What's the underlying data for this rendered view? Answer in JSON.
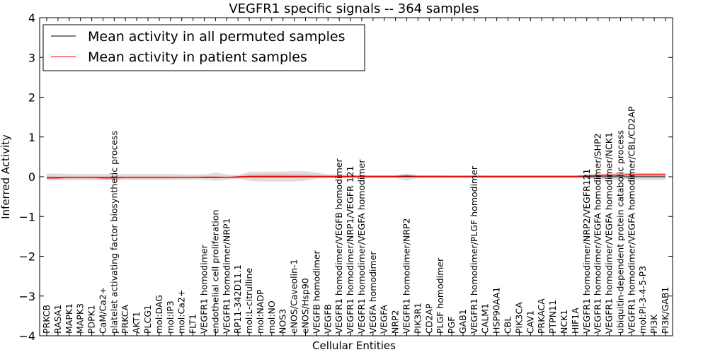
{
  "chart_data": {
    "type": "line",
    "title": "VEGFR1 specific signals -- 364 samples",
    "xlabel": "Cellular Entities",
    "ylabel": "Inferred Activity",
    "ylim": [
      -4,
      4
    ],
    "yticks": [
      "−4",
      "−3",
      "−2",
      "−1",
      "0",
      "1",
      "2",
      "3",
      "4"
    ],
    "grid": false,
    "legend_position": "top-left",
    "categories": [
      "PRKCB",
      "RASA1",
      "MAPK1",
      "MAPK3",
      "PDPK1",
      "CaM/Ca2+",
      "platelet activating factor biosynthetic process",
      "PRKCA",
      "AKT1",
      "PLCG1",
      "mol:DAG",
      "mol:IP3",
      "mol:Ca2+",
      "FLT1",
      "VEGFR1 homodimer",
      "endothelial cell proliferation",
      "VEGFR1 homodimer/NRP1",
      "RP11-342D11.1",
      "mol:L-citrulline",
      "mol:NADP",
      "mol:NO",
      "NOS3",
      "eNOS/Caveolin-1",
      "eNOS/Hsp90",
      "VEGFB homodimer",
      "VEGFB",
      "VEGFR1 homodimer/VEGFB homodimer",
      "VEGFR1 homodimer/NRP1/VEGFR 121",
      "VEGFR1 homodimer/VEGFA homodimer",
      "VEGFA homodimer",
      "VEGFA",
      "NRP2",
      "VEGFR1 homodimer/NRP2",
      "PIK3R1",
      "CD2AP",
      "PLGF homodimer",
      "PGF",
      "GAB1",
      "VEGFR1 homodimer/PLGF homodimer",
      "CALM1",
      "HSP90AA1",
      "CBL",
      "PIK3CA",
      "CAV1",
      "PRKACA",
      "PTPN11",
      "NCK1",
      "HIF1A",
      "VEGFR1 homodimer/NRP2/VEGFR121",
      "VEGFR1 homodimer/VEGFA homodimer/SHP2",
      "VEGFR1 homodimer/VEGFA homodimer/NCK1",
      "ubiquitin-dependent protein catabolic process",
      "VEGFR1 homodimer/VEGFA homodimer/CBL/CD2AP",
      "mol:PI-3-4-5-P3",
      "PI3K",
      "PI3K/GAB1"
    ],
    "series": [
      {
        "name": "Mean activity in all permuted samples",
        "color": "#000000",
        "values": [
          -0.02,
          -0.02,
          -0.02,
          -0.02,
          -0.02,
          -0.02,
          -0.02,
          -0.02,
          -0.02,
          -0.02,
          -0.02,
          -0.02,
          -0.02,
          -0.02,
          -0.02,
          -0.02,
          -0.02,
          -0.01,
          0.0,
          0.0,
          0.0,
          0.0,
          0.0,
          0.0,
          0.0,
          0.0,
          0.0,
          0.0,
          0.0,
          0.0,
          0.0,
          0.0,
          0.0,
          0.0,
          0.0,
          0.0,
          0.0,
          0.0,
          0.0,
          0.0,
          0.0,
          0.0,
          0.0,
          0.0,
          0.0,
          0.0,
          0.0,
          0.0,
          0.0,
          0.0,
          0.0,
          0.0,
          0.0,
          0.0,
          0.0,
          0.0
        ],
        "band_color": "#b3b3b3",
        "band_lower": [
          -0.09,
          -0.09,
          -0.09,
          -0.09,
          -0.09,
          -0.09,
          -0.09,
          -0.08,
          -0.08,
          -0.08,
          -0.08,
          -0.08,
          -0.08,
          -0.08,
          -0.08,
          -0.1,
          -0.08,
          -0.05,
          -0.1,
          -0.12,
          -0.12,
          -0.12,
          -0.12,
          -0.1,
          -0.05,
          -0.04,
          -0.03,
          -0.03,
          -0.03,
          -0.03,
          -0.03,
          -0.03,
          -0.1,
          -0.03,
          -0.03,
          -0.03,
          -0.03,
          -0.03,
          -0.04,
          -0.03,
          -0.03,
          -0.03,
          -0.03,
          -0.03,
          -0.03,
          -0.03,
          -0.03,
          -0.03,
          -0.05,
          -0.06,
          -0.07,
          -0.07,
          -0.08,
          -0.08,
          -0.08,
          -0.08
        ],
        "band_upper": [
          0.08,
          0.08,
          0.07,
          0.07,
          0.07,
          0.07,
          0.07,
          0.07,
          0.07,
          0.07,
          0.07,
          0.07,
          0.06,
          0.06,
          0.06,
          0.1,
          0.06,
          0.04,
          0.12,
          0.13,
          0.13,
          0.13,
          0.14,
          0.14,
          0.1,
          0.06,
          0.05,
          0.05,
          0.04,
          0.04,
          0.04,
          0.04,
          0.08,
          0.04,
          0.04,
          0.04,
          0.03,
          0.03,
          0.04,
          0.03,
          0.03,
          0.03,
          0.03,
          0.03,
          0.03,
          0.03,
          0.03,
          0.03,
          0.06,
          0.07,
          0.08,
          0.09,
          0.09,
          0.09,
          0.09,
          0.09
        ]
      },
      {
        "name": "Mean activity in patient samples",
        "color": "#ff0000",
        "values": [
          -0.03,
          -0.03,
          -0.02,
          -0.02,
          -0.02,
          -0.03,
          -0.03,
          -0.02,
          -0.02,
          -0.02,
          -0.02,
          -0.02,
          -0.02,
          -0.02,
          -0.01,
          -0.01,
          -0.02,
          0.0,
          0.01,
          0.01,
          0.01,
          0.01,
          0.01,
          0.01,
          0.01,
          0.01,
          0.01,
          0.01,
          0.01,
          0.01,
          0.01,
          0.01,
          0.02,
          0.01,
          0.01,
          0.01,
          0.01,
          0.01,
          0.01,
          0.01,
          0.01,
          0.01,
          0.01,
          0.01,
          0.01,
          0.01,
          0.01,
          0.01,
          0.02,
          0.03,
          0.04,
          0.04,
          0.05,
          0.05,
          0.05,
          0.05
        ],
        "band_color": "#f0a0a0",
        "band_lower": [
          -0.07,
          -0.06,
          -0.05,
          -0.05,
          -0.05,
          -0.06,
          -0.07,
          -0.05,
          -0.05,
          -0.05,
          -0.05,
          -0.05,
          -0.04,
          -0.04,
          -0.03,
          -0.03,
          -0.04,
          -0.02,
          -0.03,
          -0.03,
          -0.03,
          -0.03,
          -0.03,
          -0.03,
          -0.01,
          -0.01,
          -0.01,
          -0.01,
          -0.01,
          -0.01,
          -0.01,
          -0.01,
          -0.01,
          -0.01,
          -0.01,
          -0.01,
          -0.01,
          -0.01,
          -0.01,
          -0.01,
          -0.01,
          -0.01,
          -0.01,
          -0.01,
          -0.01,
          -0.01,
          -0.01,
          -0.01,
          0.0,
          0.0,
          0.01,
          0.01,
          0.01,
          0.01,
          0.01,
          0.01
        ],
        "band_upper": [
          0.01,
          0.0,
          0.01,
          0.01,
          0.01,
          0.01,
          0.0,
          0.01,
          0.01,
          0.01,
          0.01,
          0.01,
          0.01,
          0.01,
          0.01,
          0.02,
          0.01,
          0.02,
          0.06,
          0.07,
          0.07,
          0.07,
          0.07,
          0.06,
          0.04,
          0.03,
          0.03,
          0.03,
          0.03,
          0.03,
          0.03,
          0.03,
          0.05,
          0.03,
          0.03,
          0.03,
          0.03,
          0.03,
          0.03,
          0.03,
          0.03,
          0.03,
          0.03,
          0.03,
          0.03,
          0.03,
          0.03,
          0.03,
          0.05,
          0.06,
          0.08,
          0.08,
          0.09,
          0.09,
          0.09,
          0.09
        ]
      }
    ]
  }
}
